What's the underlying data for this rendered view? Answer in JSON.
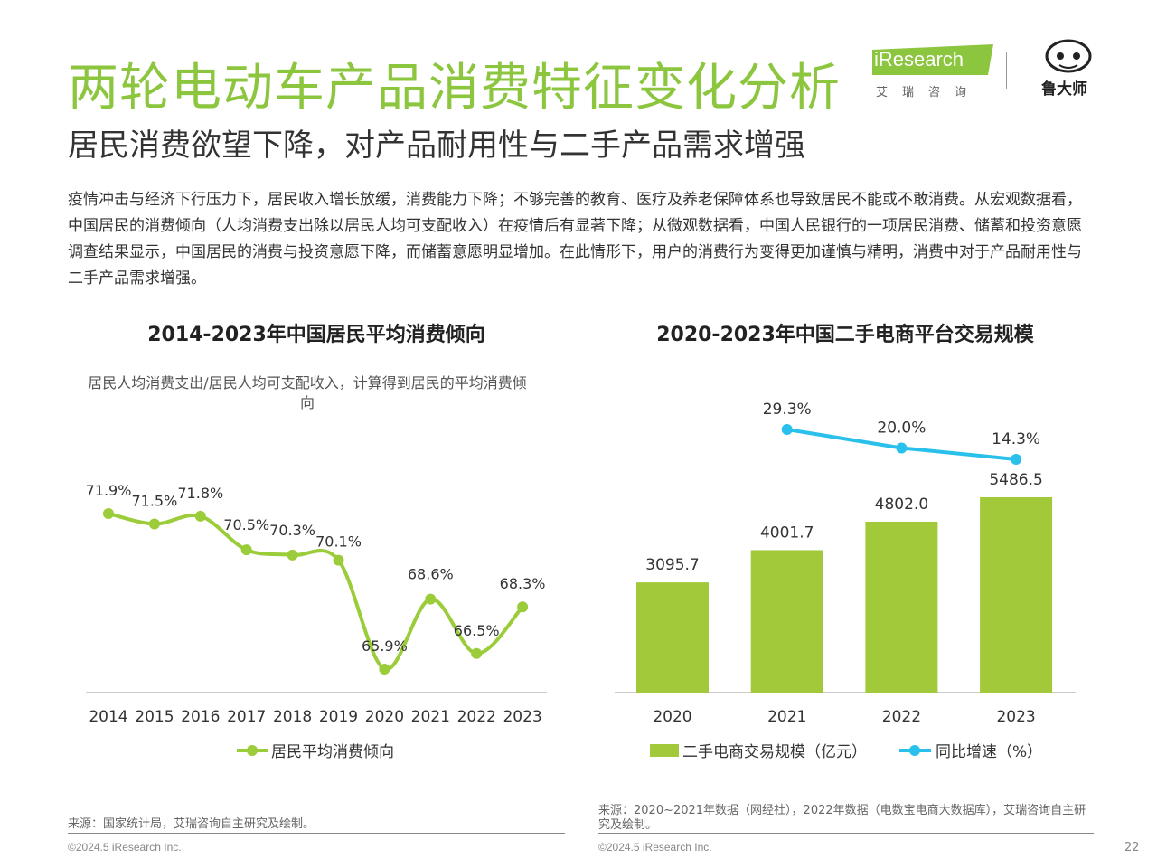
{
  "header": {
    "title": "两轮电动车产品消费特征变化分析",
    "subtitle": "居民消费欲望下降，对产品耐用性与二手产品需求增强",
    "ires_logo_text": "iResearch",
    "ires_logo_cn": "艾瑞咨询",
    "luda_logo_text": "鲁大师"
  },
  "body_text": "疫情冲击与经济下行压力下，居民收入增长放缓，消费能力下降；不够完善的教育、医疗及养老保障体系也导致居民不能或不敢消费。从宏观数据看，中国居民的消费倾向（人均消费支出除以居民人均可支配收入）在疫情后有显著下降；从微观数据看，中国人民银行的一项居民消费、储蓄和投资意愿调查结果显示，中国居民的消费与投资意愿下降，而储蓄意愿明显增加。在此情形下，用户的消费行为变得更加谨慎与精明，消费中对于产品耐用性与二手产品需求增强。",
  "chart_data": [
    {
      "type": "line",
      "title": "2014-2023年中国居民平均消费倾向",
      "note": "居民人均消费支出/居民人均可支配收入，计算得到居民的平均消费倾向",
      "x": [
        "2014",
        "2015",
        "2016",
        "2017",
        "2018",
        "2019",
        "2020",
        "2021",
        "2022",
        "2023"
      ],
      "series": [
        {
          "name": "居民平均消费倾向",
          "values": [
            71.9,
            71.5,
            71.8,
            70.5,
            70.3,
            70.1,
            65.9,
            68.6,
            66.5,
            68.3
          ]
        }
      ],
      "value_labels": [
        "71.9%",
        "71.5%",
        "71.8%",
        "70.5%",
        "70.3%",
        "70.1%",
        "65.9%",
        "68.6%",
        "66.5%",
        "68.3%"
      ],
      "color": "#9bcc3a",
      "grid": false
    },
    {
      "type": "bar",
      "title": "2020-2023年中国二手电商平台交易规模",
      "categories": [
        "2020",
        "2021",
        "2022",
        "2023"
      ],
      "series": [
        {
          "name": "二手电商交易规模（亿元）",
          "values": [
            3095.7,
            4001.7,
            4802.0,
            5486.5
          ],
          "labels": [
            "3095.7",
            "4001.7",
            "4802.0",
            "5486.5"
          ],
          "color": "#a2c93a"
        },
        {
          "name": "同比增速（%）",
          "type": "line",
          "values": [
            null,
            29.3,
            20.0,
            14.3
          ],
          "labels": [
            "",
            "29.3%",
            "20.0%",
            "14.3%"
          ],
          "color": "#29c1ec"
        }
      ],
      "legend_position": "bottom",
      "grid": false
    }
  ],
  "footer": {
    "source_left": "来源：国家统计局，艾瑞咨询自主研究及绘制。",
    "source_right": "来源：2020~2021年数据（网经社），2022年数据（电数宝电商大数据库），艾瑞咨询自主研究及绘制。",
    "copyright_left": "©2024.5 iResearch Inc.",
    "copyright_right": "©2024.5 iResearch Inc.",
    "page_number": "22"
  }
}
